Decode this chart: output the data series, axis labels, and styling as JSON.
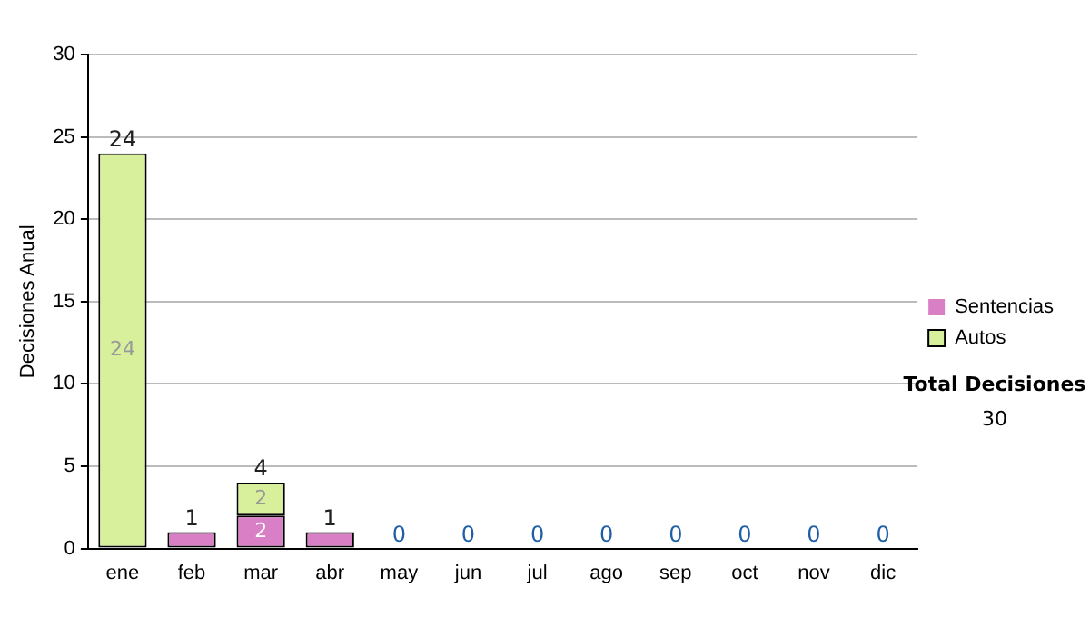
{
  "chart_data": {
    "type": "bar",
    "stacked": true,
    "ylabel": "Decisiones Anual",
    "categories": [
      "ene",
      "feb",
      "mar",
      "abr",
      "may",
      "jun",
      "jul",
      "ago",
      "sep",
      "oct",
      "nov",
      "dic"
    ],
    "series": [
      {
        "name": "Sentencias",
        "color": "#d97fc6",
        "values": [
          0,
          1,
          2,
          1,
          0,
          0,
          0,
          0,
          0,
          0,
          0,
          0
        ],
        "value_labels": [
          null,
          null,
          "2",
          null,
          null,
          null,
          null,
          null,
          null,
          null,
          null,
          null
        ]
      },
      {
        "name": "Autos",
        "color": "#d8ef9c",
        "values": [
          24,
          0,
          2,
          0,
          0,
          0,
          0,
          0,
          0,
          0,
          0,
          0
        ],
        "value_labels": [
          "24",
          null,
          "2",
          null,
          null,
          null,
          null,
          null,
          null,
          null,
          null,
          null
        ]
      }
    ],
    "totals": [
      "24",
      "1",
      "4",
      "1",
      "0",
      "0",
      "0",
      "0",
      "0",
      "0",
      "0",
      "0"
    ],
    "ylim": [
      0,
      30
    ],
    "yticks": [
      0,
      5,
      10,
      15,
      20,
      25,
      30
    ],
    "grid": "y",
    "legend": "right",
    "annotations": [
      "Total Decisiones",
      "30"
    ]
  }
}
